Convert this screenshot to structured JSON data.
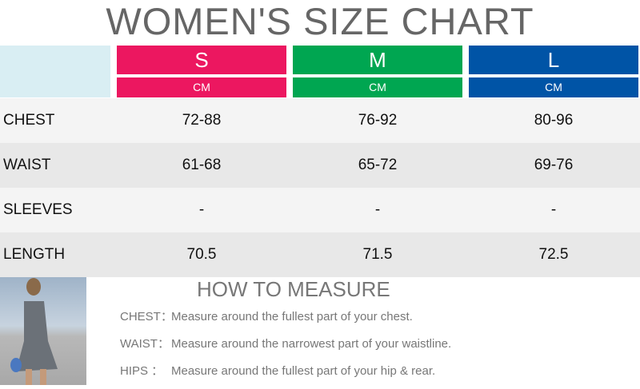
{
  "title": "WOMEN'S SIZE CHART",
  "sizes": [
    {
      "label": "S",
      "unit": "CM",
      "color": "#ec1760"
    },
    {
      "label": "M",
      "unit": "CM",
      "color": "#00a651"
    },
    {
      "label": "L",
      "unit": "CM",
      "color": "#0054a6"
    }
  ],
  "rows": [
    {
      "label": "CHEST",
      "values": [
        "72-88",
        "76-92",
        "80-96"
      ]
    },
    {
      "label": "WAIST",
      "values": [
        "61-68",
        "65-72",
        "69-76"
      ]
    },
    {
      "label": "SLEEVES",
      "values": [
        "-",
        "-",
        "-"
      ]
    },
    {
      "label": "LENGTH",
      "values": [
        "70.5",
        "71.5",
        "72.5"
      ]
    }
  ],
  "how_to_measure": {
    "title": "HOW TO MEASURE",
    "items": [
      {
        "label": "CHEST：",
        "text": "Measure around the fullest part of your chest."
      },
      {
        "label": "WAIST：",
        "text": "Measure around the narrowest part of your waistline."
      },
      {
        "label": "HIPS  ：",
        "text": "Measure around the fullest part of your hip & rear."
      }
    ]
  }
}
